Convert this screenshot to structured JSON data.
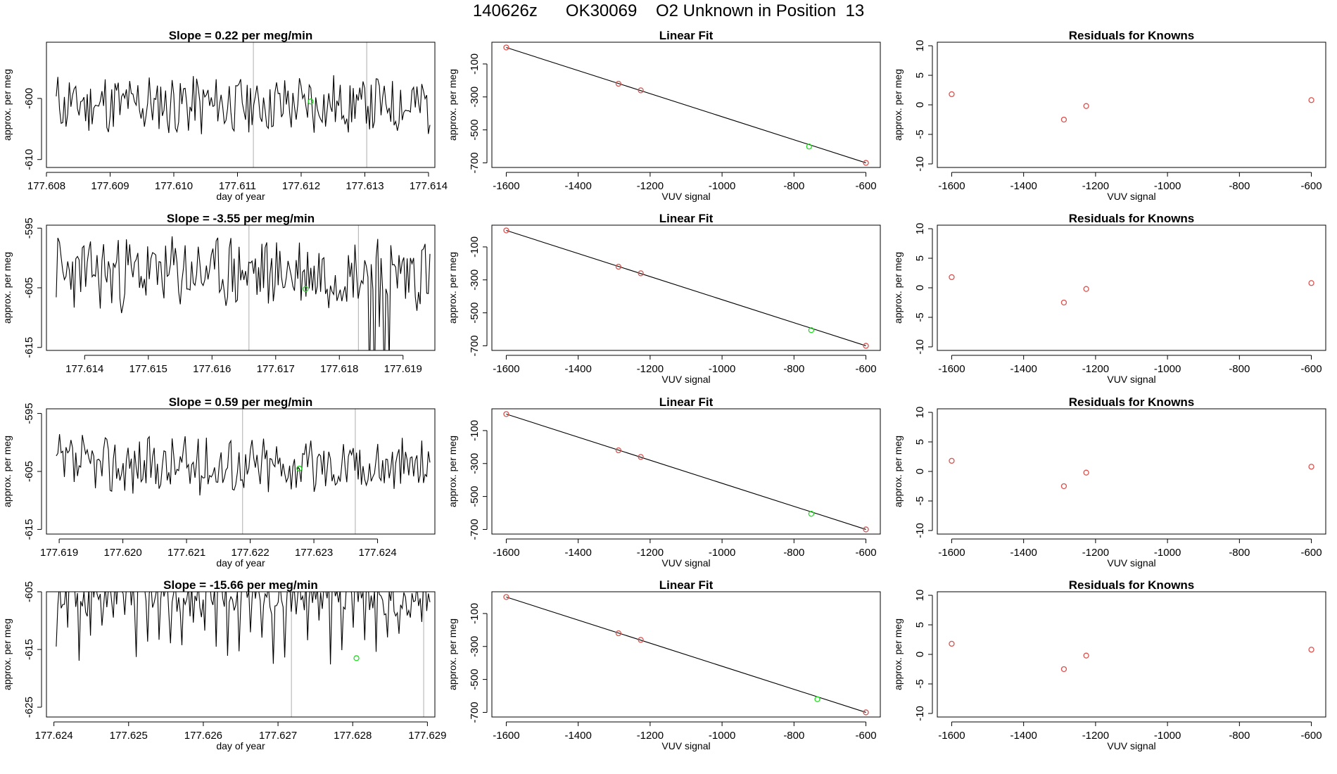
{
  "title": "140626z      OK30069    O2 Unknown in Position  13",
  "colors": {
    "known": "#d9534f",
    "unknown": "#22dd22",
    "line": "#000000",
    "vline": "#bbbbbb"
  },
  "chart_data": [
    {
      "type": "line",
      "id": "ts1",
      "title": "Slope =  0.22  per meg/min",
      "xlabel": "day of year",
      "ylabel": "approx. per meg",
      "xlim": [
        177.608,
        177.6141
      ],
      "ylim": [
        -611.3,
        -590.8
      ],
      "xticks": [
        177.608,
        177.609,
        177.61,
        177.611,
        177.612,
        177.613,
        177.614
      ],
      "xtick_labels": [
        "177.608",
        "177.609",
        "177.610",
        "177.611",
        "177.612",
        "177.613",
        "177.614"
      ],
      "yticks": [
        -600,
        -610
      ],
      "ytick_labels": [
        "-600",
        "-610"
      ],
      "vlines": [
        177.61125,
        177.61303
      ],
      "seed": 11,
      "amp": 4.5,
      "center": -601.0,
      "marker": {
        "x": 177.61215,
        "y": -600.5
      }
    },
    {
      "type": "scatter",
      "id": "fit1",
      "title": "Linear Fit",
      "xlabel": "VUV signal",
      "ylabel": "approx. per meg",
      "xlim": [
        -1640,
        -560
      ],
      "ylim": [
        -728,
        32
      ],
      "xticks": [
        -1600,
        -1400,
        -1200,
        -1000,
        -800,
        -600
      ],
      "xtick_labels": [
        "-1600",
        "-1400",
        "-1200",
        "-1000",
        "-800",
        "-600"
      ],
      "yticks": [
        -100,
        -300,
        -500,
        -700
      ],
      "ytick_labels": [
        "-100",
        "-300",
        "-500",
        "-700"
      ],
      "fit_line": {
        "x": [
          -1600,
          -600
        ],
        "y": [
          0,
          -700
        ]
      },
      "knowns": {
        "x": [
          -1600,
          -1288,
          -1226,
          -600
        ],
        "y": [
          0,
          -220,
          -260,
          -700
        ]
      },
      "unknown": {
        "x": [
          -758
        ],
        "y": [
          -601
        ]
      }
    },
    {
      "type": "scatter",
      "id": "res1",
      "title": "Residuals for Knowns",
      "xlabel": "VUV signal",
      "ylabel": "approx. per meg",
      "xlim": [
        -1640,
        -560
      ],
      "ylim": [
        -10.6,
        10.6
      ],
      "xticks": [
        -1600,
        -1400,
        -1200,
        -1000,
        -800,
        -600
      ],
      "xtick_labels": [
        "-1600",
        "-1400",
        "-1200",
        "-1000",
        "-800",
        "-600"
      ],
      "yticks": [
        10,
        5,
        0,
        -5,
        -10
      ],
      "ytick_labels": [
        "10",
        "5",
        "0",
        "-5",
        "-10"
      ],
      "points": {
        "x": [
          -1600,
          -1288,
          -1226,
          -600
        ],
        "y": [
          1.8,
          -2.5,
          -0.2,
          0.8
        ]
      }
    },
    {
      "type": "line",
      "id": "ts2",
      "title": "Slope =  -3.55  per meg/min",
      "xlabel": "",
      "ylabel": "approx. per meg",
      "xlim": [
        177.6134,
        177.6195
      ],
      "ylim": [
        -615.5,
        -594.5
      ],
      "xticks": [
        177.614,
        177.615,
        177.616,
        177.617,
        177.618,
        177.619
      ],
      "xtick_labels": [
        "177.614",
        "177.615",
        "177.616",
        "177.617",
        "177.618",
        "177.619"
      ],
      "yticks": [
        -595,
        -605,
        -615
      ],
      "ytick_labels": [
        "-595",
        "-605",
        "-615"
      ],
      "vlines": [
        177.61658,
        177.6183
      ],
      "seed": 23,
      "amp": 5.5,
      "center": -602.5,
      "marker": {
        "x": 177.61747,
        "y": -605.2
      }
    },
    {
      "type": "scatter",
      "id": "fit2",
      "title": "Linear Fit",
      "xlabel": "VUV signal",
      "ylabel": "approx. per meg",
      "xlim": [
        -1640,
        -560
      ],
      "ylim": [
        -728,
        32
      ],
      "xticks": [
        -1600,
        -1400,
        -1200,
        -1000,
        -800,
        -600
      ],
      "xtick_labels": [
        "-1600",
        "-1400",
        "-1200",
        "-1000",
        "-800",
        "-600"
      ],
      "yticks": [
        -100,
        -300,
        -500,
        -700
      ],
      "ytick_labels": [
        "-100",
        "-300",
        "-500",
        "-700"
      ],
      "fit_line": {
        "x": [
          -1600,
          -600
        ],
        "y": [
          0,
          -700
        ]
      },
      "knowns": {
        "x": [
          -1600,
          -1288,
          -1226,
          -600
        ],
        "y": [
          0,
          -220,
          -260,
          -700
        ]
      },
      "unknown": {
        "x": [
          -752
        ],
        "y": [
          -605
        ]
      }
    },
    {
      "type": "scatter",
      "id": "res2",
      "title": "Residuals for Knowns",
      "xlabel": "VUV signal",
      "ylabel": "approx. per meg",
      "xlim": [
        -1640,
        -560
      ],
      "ylim": [
        -10.6,
        10.6
      ],
      "xticks": [
        -1600,
        -1400,
        -1200,
        -1000,
        -800,
        -600
      ],
      "xtick_labels": [
        "-1600",
        "-1400",
        "-1200",
        "-1000",
        "-800",
        "-600"
      ],
      "yticks": [
        10,
        5,
        0,
        -5,
        -10
      ],
      "ytick_labels": [
        "10",
        "5",
        "0",
        "-5",
        "-10"
      ],
      "points": {
        "x": [
          -1600,
          -1288,
          -1226,
          -600
        ],
        "y": [
          1.8,
          -2.5,
          -0.2,
          0.8
        ]
      }
    },
    {
      "type": "line",
      "id": "ts3",
      "title": "Slope =  0.59  per meg/min",
      "xlabel": "day of year",
      "ylabel": "approx. per meg",
      "xlim": [
        177.6188,
        177.6249
      ],
      "ylim": [
        -615.8,
        -594.2
      ],
      "xticks": [
        177.619,
        177.62,
        177.621,
        177.622,
        177.623,
        177.624
      ],
      "xtick_labels": [
        "177.619",
        "177.620",
        "177.621",
        "177.622",
        "177.623",
        "177.624"
      ],
      "yticks": [
        -595,
        -605,
        -615
      ],
      "ytick_labels": [
        "-595",
        "-605",
        "-615"
      ],
      "vlines": [
        177.62188,
        177.62365
      ],
      "seed": 37,
      "amp": 4.5,
      "center": -604.0,
      "marker": {
        "x": 177.62277,
        "y": -604.5
      }
    },
    {
      "type": "scatter",
      "id": "fit3",
      "title": "Linear Fit",
      "xlabel": "VUV signal",
      "ylabel": "approx. per meg",
      "xlim": [
        -1640,
        -560
      ],
      "ylim": [
        -728,
        32
      ],
      "xticks": [
        -1600,
        -1400,
        -1200,
        -1000,
        -800,
        -600
      ],
      "xtick_labels": [
        "-1600",
        "-1400",
        "-1200",
        "-1000",
        "-800",
        "-600"
      ],
      "yticks": [
        -100,
        -300,
        -500,
        -700
      ],
      "ytick_labels": [
        "-100",
        "-300",
        "-500",
        "-700"
      ],
      "fit_line": {
        "x": [
          -1600,
          -600
        ],
        "y": [
          0,
          -700
        ]
      },
      "knowns": {
        "x": [
          -1600,
          -1288,
          -1226,
          -600
        ],
        "y": [
          0,
          -220,
          -260,
          -700
        ]
      },
      "unknown": {
        "x": [
          -752
        ],
        "y": [
          -605
        ]
      }
    },
    {
      "type": "scatter",
      "id": "res3",
      "title": "Residuals for Knowns",
      "xlabel": "VUV signal",
      "ylabel": "approx. per meg",
      "xlim": [
        -1640,
        -560
      ],
      "ylim": [
        -10.6,
        10.6
      ],
      "xticks": [
        -1600,
        -1400,
        -1200,
        -1000,
        -800,
        -600
      ],
      "xtick_labels": [
        "-1600",
        "-1400",
        "-1200",
        "-1000",
        "-800",
        "-600"
      ],
      "yticks": [
        10,
        5,
        0,
        -5,
        -10
      ],
      "ytick_labels": [
        "10",
        "5",
        "0",
        "-5",
        "-10"
      ],
      "points": {
        "x": [
          -1600,
          -1288,
          -1226,
          -600
        ],
        "y": [
          1.8,
          -2.5,
          -0.2,
          0.8
        ]
      }
    },
    {
      "type": "line",
      "id": "ts4",
      "title": "Slope =  -15.66  per meg/min",
      "xlabel": "day of year",
      "ylabel": "approx. per meg",
      "xlim": [
        177.6239,
        177.6291
      ],
      "ylim": [
        -626.7,
        -605.0
      ],
      "xticks": [
        177.624,
        177.625,
        177.626,
        177.627,
        177.628,
        177.629
      ],
      "xtick_labels": [
        "177.624",
        "177.625",
        "177.626",
        "177.627",
        "177.628",
        "177.629"
      ],
      "yticks": [
        -605,
        -615,
        -625
      ],
      "ytick_labels": [
        "-605",
        "-615",
        "-625"
      ],
      "vlines": [
        177.62718,
        177.62895
      ],
      "seed": 51,
      "amp": 3.2,
      "center": -605.5,
      "marker": {
        "x": 177.62805,
        "y": -616.5
      }
    },
    {
      "type": "scatter",
      "id": "fit4",
      "title": "Linear Fit",
      "xlabel": "VUV signal",
      "ylabel": "approx. per meg",
      "xlim": [
        -1640,
        -560
      ],
      "ylim": [
        -728,
        32
      ],
      "xticks": [
        -1600,
        -1400,
        -1200,
        -1000,
        -800,
        -600
      ],
      "xtick_labels": [
        "-1600",
        "-1400",
        "-1200",
        "-1000",
        "-800",
        "-600"
      ],
      "yticks": [
        -100,
        -300,
        -500,
        -700
      ],
      "ytick_labels": [
        "-100",
        "-300",
        "-500",
        "-700"
      ],
      "fit_line": {
        "x": [
          -1600,
          -600
        ],
        "y": [
          0,
          -700
        ]
      },
      "knowns": {
        "x": [
          -1600,
          -1288,
          -1226,
          -600
        ],
        "y": [
          0,
          -220,
          -260,
          -700
        ]
      },
      "unknown": {
        "x": [
          -735
        ],
        "y": [
          -620
        ]
      }
    },
    {
      "type": "scatter",
      "id": "res4",
      "title": "Residuals for Knowns",
      "xlabel": "VUV signal",
      "ylabel": "approx. per meg",
      "xlim": [
        -1640,
        -560
      ],
      "ylim": [
        -10.6,
        10.6
      ],
      "xticks": [
        -1600,
        -1400,
        -1200,
        -1000,
        -800,
        -600
      ],
      "xtick_labels": [
        "-1600",
        "-1400",
        "-1200",
        "-1000",
        "-800",
        "-600"
      ],
      "yticks": [
        10,
        5,
        0,
        -5,
        -10
      ],
      "ytick_labels": [
        "10",
        "5",
        "0",
        "-5",
        "-10"
      ],
      "points": {
        "x": [
          -1600,
          -1288,
          -1226,
          -600
        ],
        "y": [
          1.8,
          -2.5,
          -0.2,
          0.8
        ]
      }
    }
  ]
}
